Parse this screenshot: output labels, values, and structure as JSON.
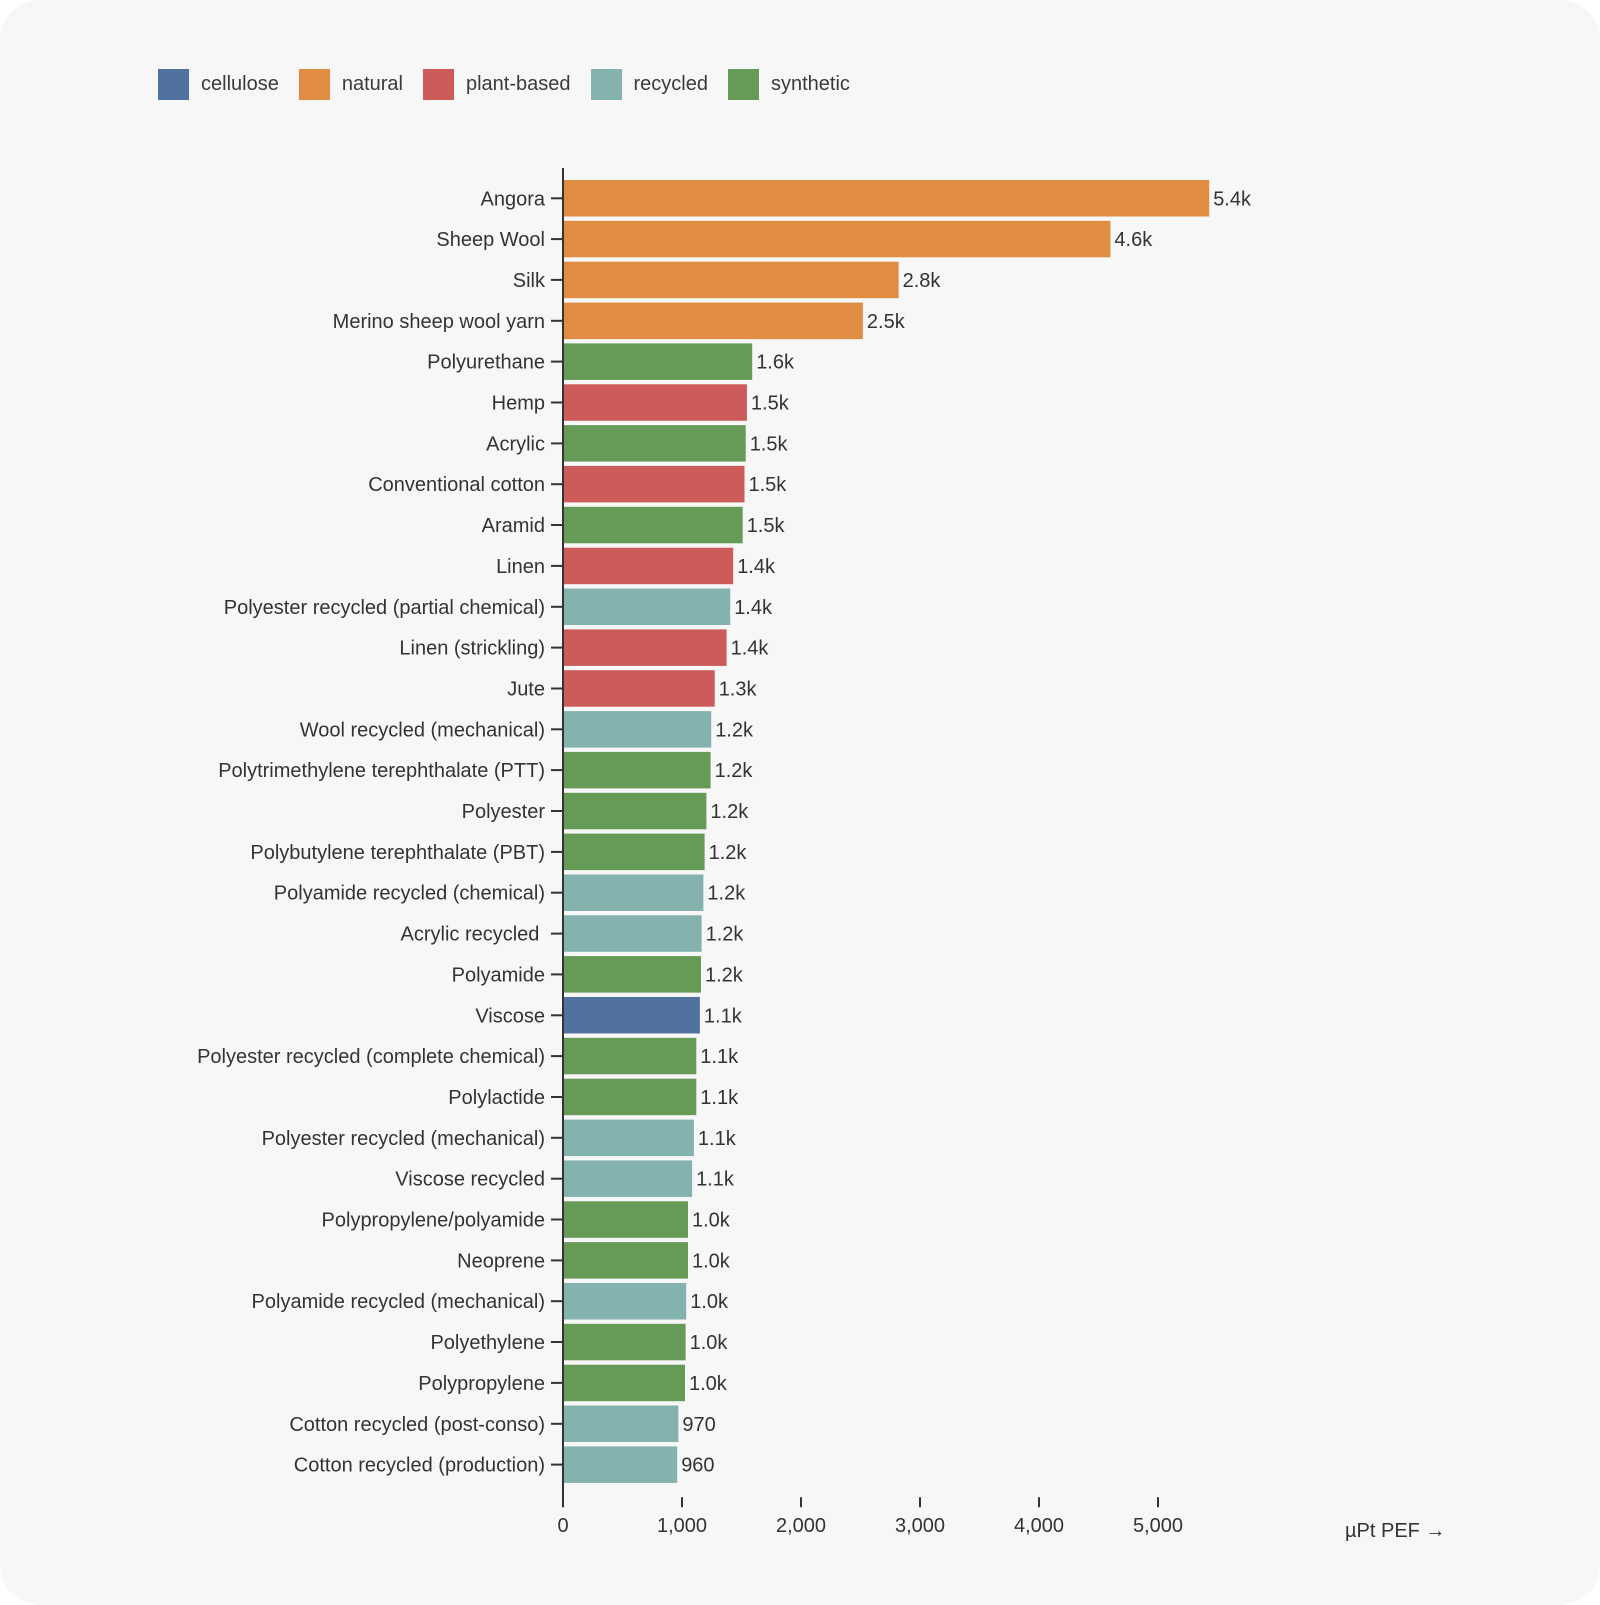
{
  "chart_data": {
    "type": "bar",
    "orientation": "horizontal",
    "title": "",
    "xlabel": "µPt PEF →",
    "ylabel": "",
    "xlim": [
      0,
      5400
    ],
    "x_ticks": [
      0,
      1000,
      2000,
      3000,
      4000,
      5000
    ],
    "x_tick_labels": [
      "0",
      "1,000",
      "2,000",
      "3,000",
      "4,000",
      "5,000"
    ],
    "grid": false,
    "legend_position": "top-left",
    "legend": [
      {
        "name": "cellulose",
        "color": "#51729e"
      },
      {
        "name": "natural",
        "color": "#e08c43"
      },
      {
        "name": "plant-based",
        "color": "#cc5b59"
      },
      {
        "name": "recycled",
        "color": "#84b2ae"
      },
      {
        "name": "synthetic",
        "color": "#659b56"
      }
    ],
    "bars": [
      {
        "category": "Angora",
        "value": 5430,
        "label": "5.4k",
        "group": "natural"
      },
      {
        "category": "Sheep Wool",
        "value": 4600,
        "label": "4.6k",
        "group": "natural"
      },
      {
        "category": "Silk",
        "value": 2820,
        "label": "2.8k",
        "group": "natural"
      },
      {
        "category": "Merino sheep wool yarn",
        "value": 2520,
        "label": "2.5k",
        "group": "natural"
      },
      {
        "category": "Polyurethane",
        "value": 1590,
        "label": "1.6k",
        "group": "synthetic"
      },
      {
        "category": "Hemp",
        "value": 1545,
        "label": "1.5k",
        "group": "plant-based"
      },
      {
        "category": "Acrylic",
        "value": 1535,
        "label": "1.5k",
        "group": "synthetic"
      },
      {
        "category": "Conventional cotton",
        "value": 1525,
        "label": "1.5k",
        "group": "plant-based"
      },
      {
        "category": "Aramid",
        "value": 1510,
        "label": "1.5k",
        "group": "synthetic"
      },
      {
        "category": "Linen",
        "value": 1430,
        "label": "1.4k",
        "group": "plant-based"
      },
      {
        "category": "Polyester recycled (partial chemical)",
        "value": 1405,
        "label": "1.4k",
        "group": "recycled"
      },
      {
        "category": "Linen (strickling)",
        "value": 1375,
        "label": "1.4k",
        "group": "plant-based"
      },
      {
        "category": "Jute",
        "value": 1275,
        "label": "1.3k",
        "group": "plant-based"
      },
      {
        "category": "Wool recycled (mechanical)",
        "value": 1245,
        "label": "1.2k",
        "group": "recycled"
      },
      {
        "category": "Polytrimethylene terephthalate (PTT)",
        "value": 1240,
        "label": "1.2k",
        "group": "synthetic"
      },
      {
        "category": "Polyester",
        "value": 1205,
        "label": "1.2k",
        "group": "synthetic"
      },
      {
        "category": "Polybutylene terephthalate (PBT)",
        "value": 1190,
        "label": "1.2k",
        "group": "synthetic"
      },
      {
        "category": "Polyamide recycled (chemical)",
        "value": 1180,
        "label": "1.2k",
        "group": "recycled"
      },
      {
        "category": "Acrylic recycled ",
        "value": 1165,
        "label": "1.2k",
        "group": "recycled"
      },
      {
        "category": "Polyamide",
        "value": 1160,
        "label": "1.2k",
        "group": "synthetic"
      },
      {
        "category": "Viscose",
        "value": 1150,
        "label": "1.1k",
        "group": "cellulose"
      },
      {
        "category": "Polyester recycled (complete chemical)",
        "value": 1120,
        "label": "1.1k",
        "group": "synthetic"
      },
      {
        "category": "Polylactide",
        "value": 1120,
        "label": "1.1k",
        "group": "synthetic"
      },
      {
        "category": "Polyester recycled (mechanical)",
        "value": 1100,
        "label": "1.1k",
        "group": "recycled"
      },
      {
        "category": "Viscose recycled",
        "value": 1085,
        "label": "1.1k",
        "group": "recycled"
      },
      {
        "category": "Polypropylene/polyamide",
        "value": 1050,
        "label": "1.0k",
        "group": "synthetic"
      },
      {
        "category": "Neoprene",
        "value": 1050,
        "label": "1.0k",
        "group": "synthetic"
      },
      {
        "category": "Polyamide recycled (mechanical)",
        "value": 1035,
        "label": "1.0k",
        "group": "recycled"
      },
      {
        "category": "Polyethylene",
        "value": 1030,
        "label": "1.0k",
        "group": "synthetic"
      },
      {
        "category": "Polypropylene",
        "value": 1025,
        "label": "1.0k",
        "group": "synthetic"
      },
      {
        "category": "Cotton recycled (post-conso)",
        "value": 970,
        "label": "970",
        "group": "recycled"
      },
      {
        "category": "Cotton recycled (production)",
        "value": 960,
        "label": "960",
        "group": "recycled"
      }
    ]
  }
}
